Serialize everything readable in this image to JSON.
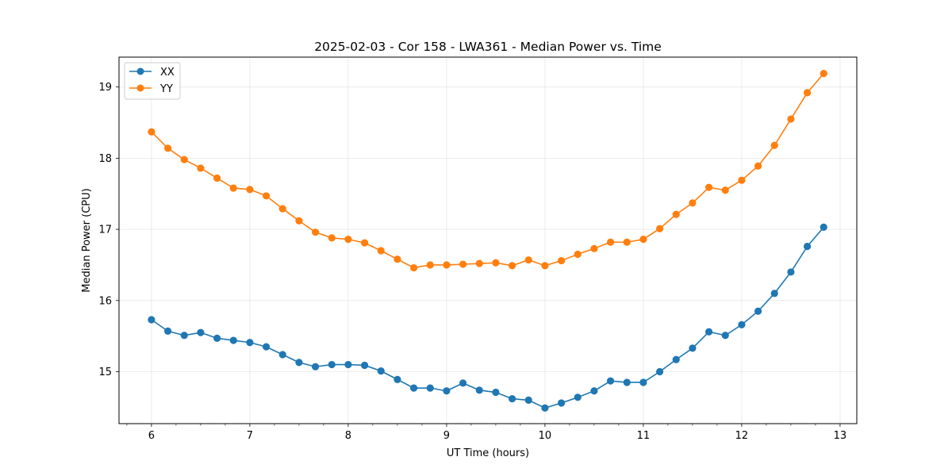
{
  "chart_data": {
    "type": "line",
    "title": "2025-02-03 - Cor 158 - LWA361 - Median Power vs. Time",
    "xlabel": "UT Time (hours)",
    "ylabel": "Median Power (CPU)",
    "xlim": [
      5.67,
      13.17
    ],
    "ylim": [
      14.27,
      19.42
    ],
    "xticks": [
      6,
      7,
      8,
      9,
      10,
      11,
      12,
      13
    ],
    "xticks_minor": [
      5.75,
      6.25,
      6.5,
      6.75,
      7.25,
      7.5,
      7.75,
      8.25,
      8.5,
      8.75,
      9.25,
      9.5,
      9.75,
      10.25,
      10.5,
      10.75,
      11.25,
      11.5,
      11.75,
      12.25,
      12.5,
      12.75
    ],
    "yticks": [
      15,
      16,
      17,
      18,
      19
    ],
    "grid": true,
    "legend_position": "top-left",
    "x": [
      6.0,
      6.1667,
      6.3333,
      6.5,
      6.6667,
      6.8333,
      7.0,
      7.1667,
      7.3333,
      7.5,
      7.6667,
      7.8333,
      8.0,
      8.1667,
      8.3333,
      8.5,
      8.6667,
      8.8333,
      9.0,
      9.1667,
      9.3333,
      9.5,
      9.6667,
      9.8333,
      10.0,
      10.1667,
      10.3333,
      10.5,
      10.6667,
      10.8333,
      11.0,
      11.1667,
      11.3333,
      11.5,
      11.6667,
      11.8333,
      12.0,
      12.1667,
      12.3333,
      12.5,
      12.6667,
      12.8333
    ],
    "series": [
      {
        "name": "XX",
        "color": "#1f77b4",
        "values": [
          15.73,
          15.57,
          15.51,
          15.55,
          15.47,
          15.44,
          15.41,
          15.35,
          15.24,
          15.13,
          15.07,
          15.1,
          15.1,
          15.09,
          15.01,
          14.89,
          14.77,
          14.77,
          14.73,
          14.84,
          14.74,
          14.71,
          14.62,
          14.6,
          14.49,
          14.56,
          14.64,
          14.73,
          14.87,
          14.85,
          14.85,
          15.0,
          15.17,
          15.33,
          15.56,
          15.51,
          15.66,
          15.85,
          16.1,
          16.4,
          16.76,
          17.03
        ]
      },
      {
        "name": "YY",
        "color": "#ff7f0e",
        "values": [
          18.37,
          18.14,
          17.98,
          17.86,
          17.72,
          17.58,
          17.56,
          17.47,
          17.29,
          17.12,
          16.96,
          16.88,
          16.86,
          16.81,
          16.7,
          16.58,
          16.46,
          16.5,
          16.5,
          16.51,
          16.52,
          16.53,
          16.49,
          16.57,
          16.49,
          16.56,
          16.65,
          16.73,
          16.82,
          16.82,
          16.86,
          17.01,
          17.21,
          17.37,
          17.59,
          17.55,
          17.69,
          17.89,
          18.18,
          18.55,
          18.92,
          19.19
        ]
      }
    ]
  }
}
